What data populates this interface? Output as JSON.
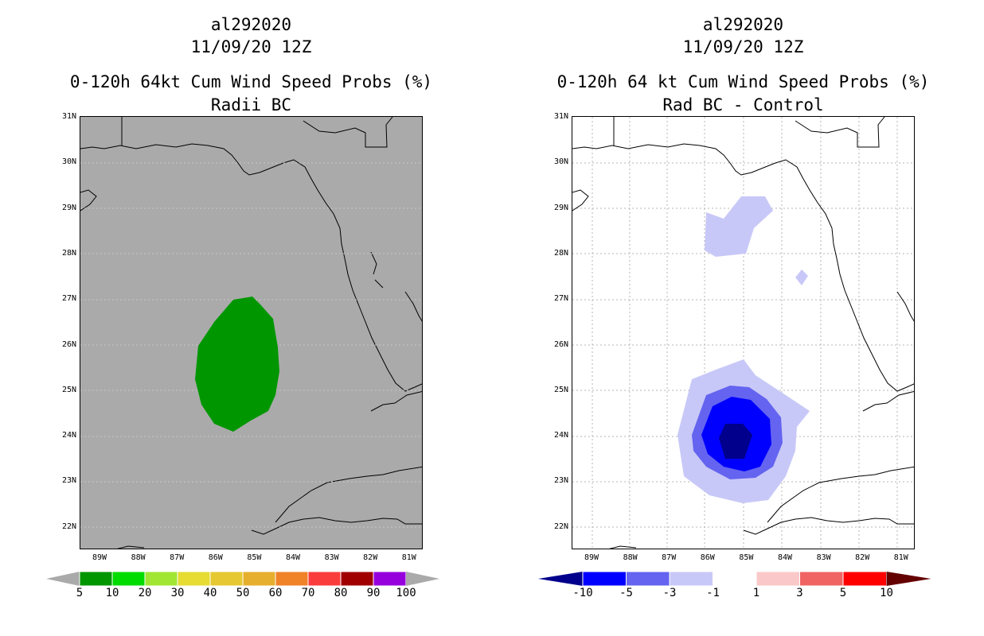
{
  "left_panel": {
    "title_line1": "al292020",
    "title_line2": "11/09/20 12Z",
    "title_line3": "0-120h 64kt Cum Wind Speed Probs (%)",
    "title_line4": "Radii BC",
    "background_color": "#aaaaaa",
    "colorbar": {
      "labels": [
        "5",
        "10",
        "20",
        "30",
        "40",
        "50",
        "60",
        "70",
        "80",
        "90",
        "100"
      ],
      "colors": [
        "#009600",
        "#00dc00",
        "#a0e632",
        "#e6dc32",
        "#e6c832",
        "#e6af2d",
        "#f08228",
        "#fa3c3c",
        "#a00000",
        "#9600dc"
      ]
    },
    "contour_fill": "#009600"
  },
  "right_panel": {
    "title_line1": "al292020",
    "title_line2": "11/09/20 12Z",
    "title_line3": "0-120h 64 kt Cum Wind Speed Probs (%)",
    "title_line4": "Rad BC - Control",
    "background_color": "#ffffff",
    "colorbar": {
      "labels": [
        "-10",
        "-5",
        "-3",
        "-1",
        "1",
        "3",
        "5",
        "10"
      ],
      "colors": [
        "#00008c",
        "#0000ff",
        "#6464f0",
        "#c8c8f8",
        "#ffffff",
        "#fac8c8",
        "#f06464",
        "#ff0000",
        "#640000"
      ]
    }
  },
  "axes": {
    "lat_labels": [
      "31N",
      "30N",
      "29N",
      "28N",
      "27N",
      "26N",
      "25N",
      "24N",
      "23N",
      "22N"
    ],
    "lon_labels": [
      "89W",
      "88W",
      "87W",
      "86W",
      "85W",
      "84W",
      "83W",
      "82W",
      "81W"
    ]
  }
}
